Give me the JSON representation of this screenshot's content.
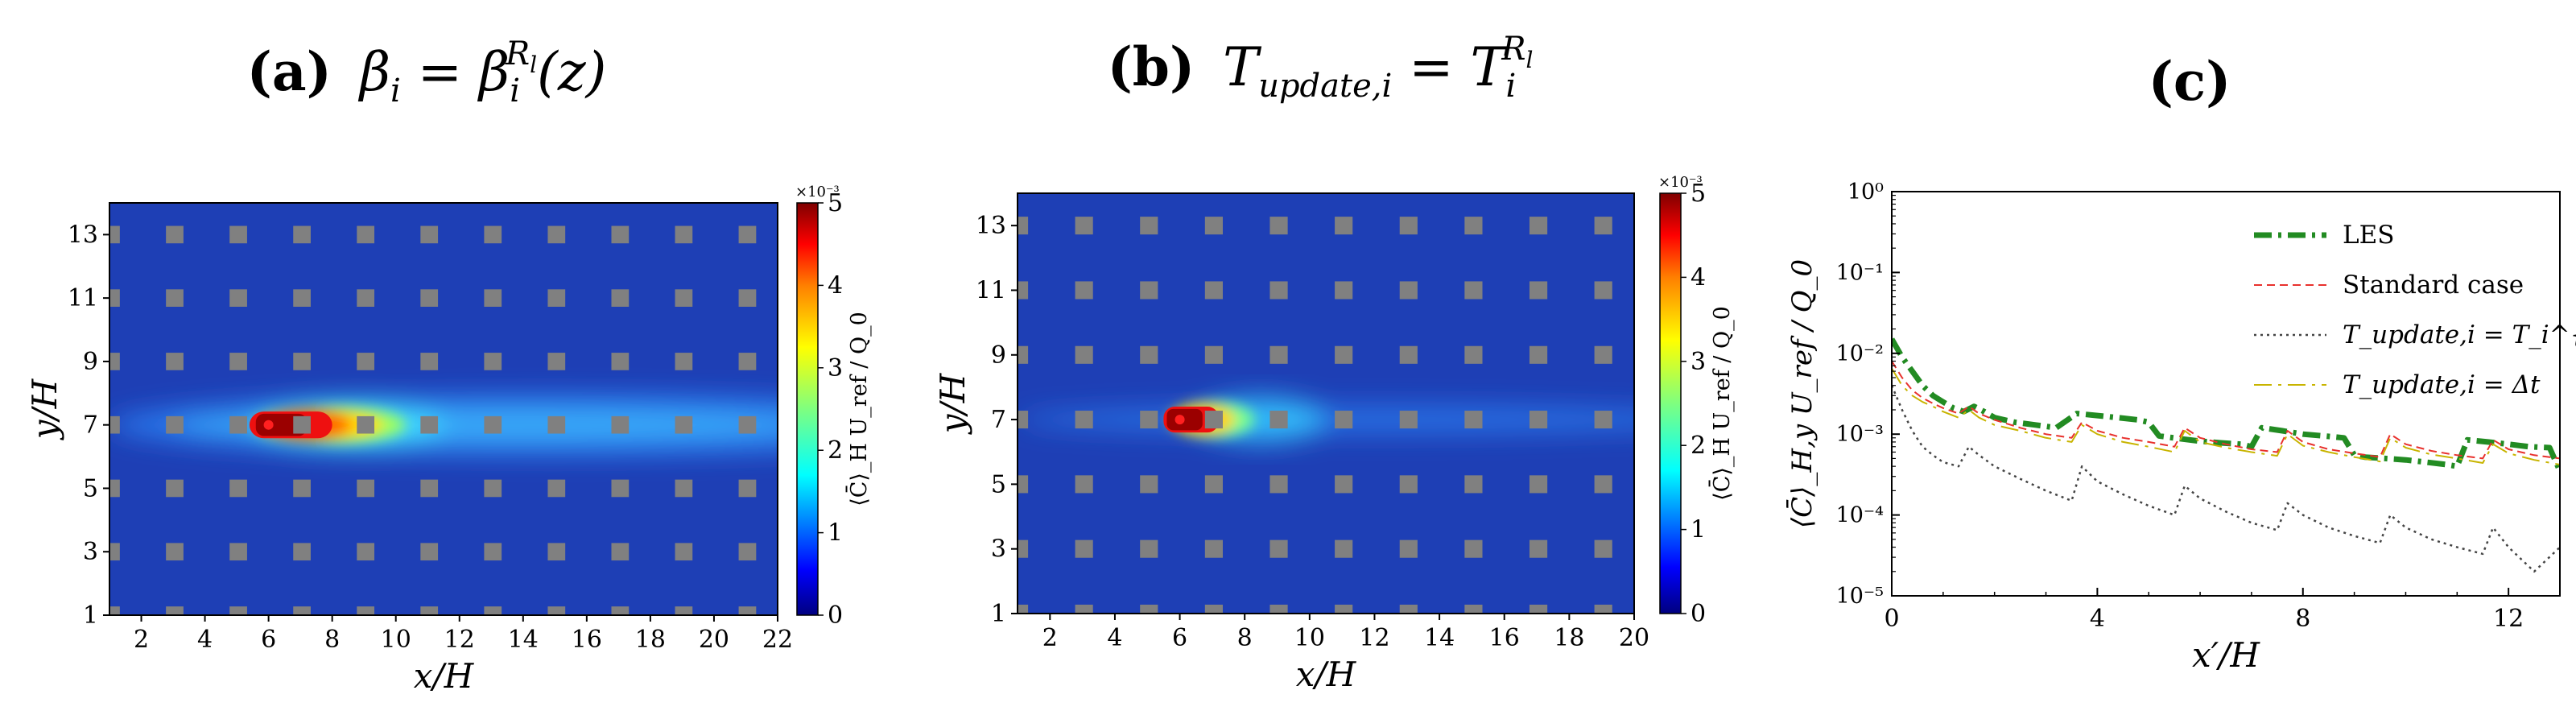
{
  "chart_data": [
    {
      "panel": "a",
      "type": "heatmap",
      "title_letter": "(a)",
      "title_formula": "β_i = β_i^{R_l}(z)",
      "xlabel": "x/H",
      "ylabel": "y/H",
      "xlim": [
        1,
        22
      ],
      "ylim": [
        1,
        14
      ],
      "xticks": [
        "2",
        "4",
        "6",
        "8",
        "10",
        "12",
        "14",
        "16",
        "18",
        "20",
        "22"
      ],
      "yticks": [
        "1",
        "3",
        "5",
        "7",
        "9",
        "11",
        "13"
      ],
      "colorbar": {
        "label": "⟨C̄⟩_H U_ref / Q_0",
        "multiplier": "×10⁻³",
        "ticks": [
          "0",
          "1",
          "2",
          "3",
          "4",
          "5"
        ],
        "min": 0,
        "max": 5,
        "colors": [
          "#00007f",
          "#0000ff",
          "#007fff",
          "#00ffff",
          "#7fff7f",
          "#ffff00",
          "#ff7f00",
          "#ff0000",
          "#7f0000"
        ]
      },
      "source_x_over_H": 6,
      "source_y_over_H": 7,
      "building_color": "#808080",
      "background_color": "#1e3fb5"
    },
    {
      "panel": "b",
      "type": "heatmap",
      "title_letter": "(b)",
      "title_formula": "T_update,i = T_i^{R_l}",
      "xlabel": "x/H",
      "ylabel": "y/H",
      "xlim": [
        1,
        20
      ],
      "ylim": [
        1,
        14
      ],
      "xticks": [
        "2",
        "4",
        "6",
        "8",
        "10",
        "12",
        "14",
        "16",
        "18",
        "20"
      ],
      "yticks": [
        "1",
        "3",
        "5",
        "7",
        "9",
        "11",
        "13"
      ],
      "colorbar": {
        "label": "⟨C̄⟩_H U_ref / Q_0",
        "multiplier": "×10⁻³",
        "ticks": [
          "0",
          "1",
          "2",
          "3",
          "4",
          "5"
        ],
        "min": 0,
        "max": 5,
        "colors": [
          "#00007f",
          "#0000ff",
          "#007fff",
          "#00ffff",
          "#7fff7f",
          "#ffff00",
          "#ff7f00",
          "#ff0000",
          "#7f0000"
        ]
      },
      "source_x_over_H": 6,
      "source_y_over_H": 7,
      "building_color": "#808080",
      "background_color": "#1e3fb5"
    },
    {
      "panel": "c",
      "type": "line",
      "title_letter": "(c)",
      "xlabel": "x′/H",
      "ylabel": "⟨C̄⟩_H,y U_ref / Q_0",
      "xlim": [
        0,
        13
      ],
      "ylim": [
        1e-05,
        1
      ],
      "yscale": "log",
      "xticks": [
        0,
        4,
        8,
        12
      ],
      "xtick_labels": [
        "0",
        "4",
        "8",
        "12"
      ],
      "yticks": [
        1e-05,
        0.0001,
        0.001,
        0.01,
        0.1,
        1
      ],
      "ytick_labels": [
        "10⁻⁵",
        "10⁻⁴",
        "10⁻³",
        "10⁻²",
        "10⁻¹",
        "10⁰"
      ],
      "legend_position": "top-right",
      "series": [
        {
          "name": "LES",
          "color": "#228b22",
          "style": "dashdot",
          "x": [
            0,
            0.2,
            0.4,
            0.6,
            0.8,
            1.0,
            1.2,
            1.4,
            1.6,
            1.8,
            2.0,
            2.4,
            2.8,
            3.2,
            3.6,
            4.0,
            4.4,
            4.8,
            5.0,
            5.2,
            5.6,
            6.0,
            6.4,
            6.8,
            7.0,
            7.2,
            7.6,
            8.0,
            8.4,
            8.8,
            9.0,
            9.2,
            9.6,
            10.0,
            10.4,
            10.8,
            11.0,
            11.2,
            11.6,
            12.0,
            12.4,
            12.8,
            13.0
          ],
          "y": [
            0.015,
            0.009,
            0.006,
            0.004,
            0.003,
            0.0025,
            0.0021,
            0.0019,
            0.0022,
            0.0019,
            0.0016,
            0.0014,
            0.0013,
            0.0012,
            0.0018,
            0.0017,
            0.0016,
            0.0015,
            0.0014,
            0.00095,
            0.00088,
            0.00082,
            0.00078,
            0.00075,
            0.0007,
            0.0012,
            0.0011,
            0.001,
            0.00095,
            0.0009,
            0.00055,
            0.00052,
            0.0005,
            0.00048,
            0.00045,
            0.00042,
            0.0004,
            0.00085,
            0.0008,
            0.00075,
            0.0007,
            0.00068,
            0.00035
          ]
        },
        {
          "name": "Standard case",
          "color": "#e8312d",
          "style": "dashed",
          "x": [
            0,
            0.2,
            0.4,
            0.6,
            0.8,
            1.0,
            1.3,
            1.5,
            1.7,
            2.0,
            2.5,
            3.0,
            3.5,
            3.7,
            4.0,
            4.5,
            5.0,
            5.5,
            5.7,
            6.0,
            6.5,
            7.0,
            7.5,
            7.7,
            8.0,
            8.5,
            9.0,
            9.5,
            9.7,
            10.0,
            10.5,
            11.0,
            11.5,
            11.7,
            12.0,
            12.5,
            13.0
          ],
          "y": [
            0.008,
            0.005,
            0.0035,
            0.0028,
            0.0024,
            0.0021,
            0.0018,
            0.0022,
            0.0018,
            0.0015,
            0.0012,
            0.001,
            0.0009,
            0.0014,
            0.0011,
            0.0009,
            0.0008,
            0.0007,
            0.0012,
            0.0009,
            0.00075,
            0.00065,
            0.0006,
            0.0011,
            0.0008,
            0.00065,
            0.00058,
            0.00052,
            0.001,
            0.00075,
            0.00062,
            0.00055,
            0.0005,
            0.00085,
            0.00065,
            0.00055,
            0.0005
          ]
        },
        {
          "name": "T_update,i = T_i^{R_l}",
          "color": "#444444",
          "style": "dotted",
          "x": [
            0,
            0.2,
            0.4,
            0.6,
            0.8,
            1.0,
            1.3,
            1.5,
            1.7,
            2.0,
            2.5,
            3.0,
            3.5,
            3.7,
            4.0,
            4.5,
            5.0,
            5.5,
            5.7,
            6.0,
            6.5,
            7.0,
            7.5,
            7.7,
            8.0,
            8.5,
            9.0,
            9.5,
            9.7,
            10.0,
            10.5,
            11.0,
            11.5,
            11.7,
            12.0,
            12.5,
            13.0
          ],
          "y": [
            0.004,
            0.002,
            0.0011,
            0.0007,
            0.00055,
            0.00045,
            0.0004,
            0.0007,
            0.00055,
            0.0004,
            0.00028,
            0.0002,
            0.00015,
            0.0004,
            0.00026,
            0.00018,
            0.00013,
            0.0001,
            0.00023,
            0.00016,
            0.00011,
            8e-05,
            6.5e-05,
            0.00014,
            0.0001,
            7e-05,
            5.5e-05,
            4.5e-05,
            0.0001,
            7e-05,
            5e-05,
            4e-05,
            3.3e-05,
            7e-05,
            4e-05,
            2e-05,
            4e-05
          ]
        },
        {
          "name": "T_update,i = Δt",
          "color": "#c8b400",
          "style": "dashdot",
          "x": [
            0,
            0.2,
            0.4,
            0.6,
            0.8,
            1.0,
            1.3,
            1.5,
            1.7,
            2.0,
            2.5,
            3.0,
            3.5,
            3.7,
            4.0,
            4.5,
            5.0,
            5.5,
            5.7,
            6.0,
            6.5,
            7.0,
            7.5,
            7.7,
            8.0,
            8.5,
            9.0,
            9.5,
            9.7,
            10.0,
            10.5,
            11.0,
            11.5,
            11.7,
            12.0,
            12.5,
            13.0
          ],
          "y": [
            0.0065,
            0.004,
            0.003,
            0.0025,
            0.0022,
            0.0019,
            0.0016,
            0.002,
            0.0016,
            0.0013,
            0.0011,
            0.0009,
            0.0008,
            0.0013,
            0.001,
            0.0008,
            0.0007,
            0.0006,
            0.0011,
            0.0008,
            0.00068,
            0.0006,
            0.00054,
            0.001,
            0.00072,
            0.0006,
            0.00052,
            0.00046,
            0.0009,
            0.00068,
            0.00056,
            0.0005,
            0.00044,
            0.00075,
            0.00058,
            0.00048,
            0.00042
          ]
        }
      ]
    }
  ]
}
